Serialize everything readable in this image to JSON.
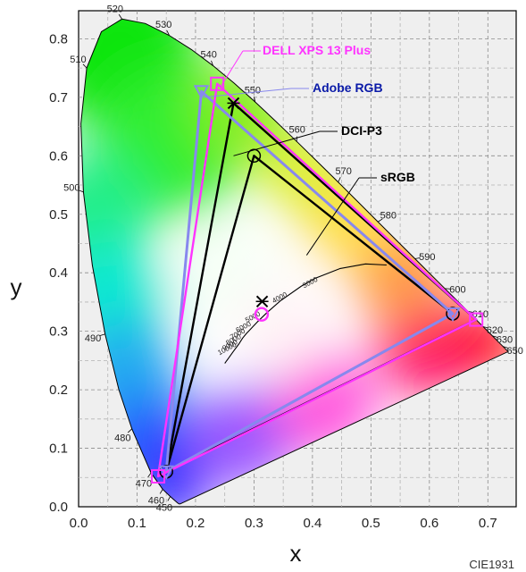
{
  "chart_data": {
    "type": "scatter",
    "xlabel": "x",
    "ylabel": "y",
    "xlim": [
      0.0,
      0.75
    ],
    "ylim": [
      0.0,
      0.85
    ],
    "x_ticks": [
      "0.0",
      "0.1",
      "0.2",
      "0.3",
      "0.4",
      "0.5",
      "0.6",
      "0.7"
    ],
    "y_ticks": [
      "0.0",
      "0.1",
      "0.2",
      "0.3",
      "0.4",
      "0.5",
      "0.6",
      "0.7",
      "0.8"
    ],
    "grid": true,
    "credit": "CIE1931",
    "wavelength_labels": [
      {
        "text": "450",
        "x": 0.157,
        "y": 0.018
      },
      {
        "text": "460",
        "x": 0.144,
        "y": 0.03
      },
      {
        "text": "470",
        "x": 0.124,
        "y": 0.058
      },
      {
        "text": "480",
        "x": 0.091,
        "y": 0.133
      },
      {
        "text": "490",
        "x": 0.045,
        "y": 0.295
      },
      {
        "text": "500",
        "x": 0.008,
        "y": 0.538
      },
      {
        "text": "510",
        "x": 0.014,
        "y": 0.75
      },
      {
        "text": "520",
        "x": 0.074,
        "y": 0.834
      },
      {
        "text": "530",
        "x": 0.155,
        "y": 0.806
      },
      {
        "text": "540",
        "x": 0.23,
        "y": 0.754
      },
      {
        "text": "550",
        "x": 0.302,
        "y": 0.692
      },
      {
        "text": "560",
        "x": 0.373,
        "y": 0.624
      },
      {
        "text": "570",
        "x": 0.444,
        "y": 0.555
      },
      {
        "text": "580",
        "x": 0.512,
        "y": 0.487
      },
      {
        "text": "590",
        "x": 0.575,
        "y": 0.424
      },
      {
        "text": "600",
        "x": 0.627,
        "y": 0.373
      },
      {
        "text": "610",
        "x": 0.666,
        "y": 0.334
      },
      {
        "text": "620",
        "x": 0.691,
        "y": 0.308
      },
      {
        "text": "630",
        "x": 0.708,
        "y": 0.292
      },
      {
        "text": "650",
        "x": 0.726,
        "y": 0.274
      }
    ],
    "cct_labels": [
      "10000",
      "9000",
      "8000",
      "7000",
      "6000",
      "5000",
      "4000",
      "3000"
    ],
    "series": [
      {
        "name": "DELL XPS 13 Plus",
        "color": "#ff33ff",
        "points": [
          [
            0.68,
            0.32
          ],
          [
            0.237,
            0.723
          ],
          [
            0.136,
            0.052
          ]
        ],
        "white_point": [
          0.313,
          0.329
        ]
      },
      {
        "name": "Adobe RGB",
        "color": "#8888ee",
        "points": [
          [
            0.64,
            0.33
          ],
          [
            0.21,
            0.71
          ],
          [
            0.15,
            0.06
          ]
        ]
      },
      {
        "name": "DCI-P3",
        "color": "#000000",
        "points": [
          [
            0.68,
            0.32
          ],
          [
            0.265,
            0.69
          ],
          [
            0.15,
            0.06
          ]
        ],
        "white_point": [
          0.314,
          0.351
        ]
      },
      {
        "name": "sRGB",
        "color": "#000000",
        "points": [
          [
            0.64,
            0.33
          ],
          [
            0.3,
            0.6
          ],
          [
            0.15,
            0.06
          ]
        ]
      }
    ]
  },
  "legend": [
    {
      "label": "DELL XPS 13 Plus",
      "color": "#ff33ff"
    },
    {
      "label": "Adobe RGB",
      "color": "#0a1aa8"
    },
    {
      "label": "DCI-P3",
      "color": "#000000"
    },
    {
      "label": "sRGB",
      "color": "#000000"
    }
  ]
}
